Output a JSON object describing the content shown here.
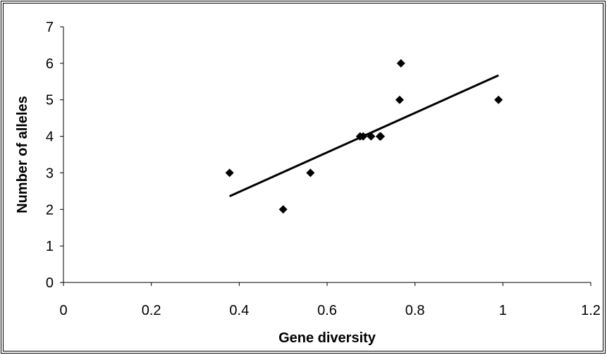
{
  "chart_data": {
    "type": "scatter",
    "xlabel": "Gene diversity",
    "ylabel": "Number of alleles",
    "xlim": [
      0,
      1.2
    ],
    "ylim": [
      0,
      7
    ],
    "x_ticks": [
      "0",
      "0.2",
      "0.4",
      "0.6",
      "0.8",
      "1",
      "1.2"
    ],
    "y_ticks": [
      "0",
      "1",
      "2",
      "3",
      "4",
      "5",
      "6",
      "7"
    ],
    "grid": false,
    "legend": "none",
    "marker": "diamond",
    "marker_color": "#000000",
    "points": [
      {
        "x": 0.378,
        "y": 3
      },
      {
        "x": 0.5,
        "y": 2
      },
      {
        "x": 0.562,
        "y": 3
      },
      {
        "x": 0.675,
        "y": 4
      },
      {
        "x": 0.682,
        "y": 4
      },
      {
        "x": 0.7,
        "y": 4
      },
      {
        "x": 0.72,
        "y": 4
      },
      {
        "x": 0.722,
        "y": 4
      },
      {
        "x": 0.765,
        "y": 5
      },
      {
        "x": 0.768,
        "y": 6
      },
      {
        "x": 0.99,
        "y": 5
      }
    ],
    "trendline": {
      "type": "linear",
      "x": [
        0.378,
        0.99
      ],
      "y": [
        2.36,
        5.67
      ]
    }
  }
}
